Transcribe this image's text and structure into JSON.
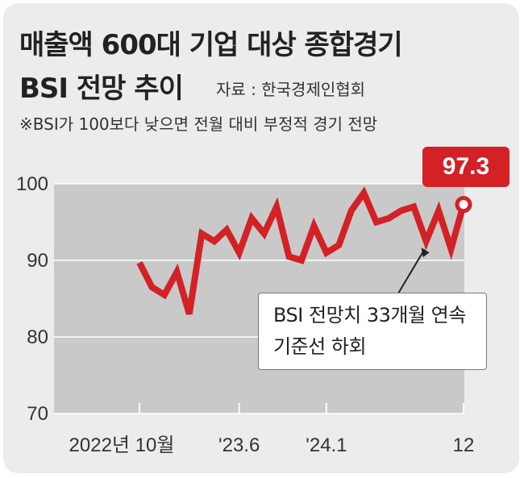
{
  "title_line1": "매출액 600대 기업 대상 종합경기",
  "title_line2": "BSI 전망 추이",
  "source": "자료 : 한국경제인협회",
  "note": "※BSI가 100보다 낮으면 전월 대비 부정적 경기 전망",
  "colors": {
    "line": "#d32126",
    "plot_bg": "#c9c9c9",
    "frame_bg": "#ececec"
  },
  "chart_data": {
    "type": "line",
    "title": "매출액 600대 기업 대상 종합경기 BSI 전망 추이",
    "ylim": [
      70,
      100
    ],
    "yticks": [
      100,
      90,
      80,
      70
    ],
    "x_tick_labels": [
      {
        "label": "2022년 10월",
        "index": 0
      },
      {
        "label": "'23.6",
        "index": 8
      },
      {
        "label": "'24.1",
        "index": 15
      },
      {
        "label": "12",
        "index": 26
      }
    ],
    "x": [
      "2022-10",
      "2022-11",
      "2022-12",
      "2023-01",
      "2023-02",
      "2023-03",
      "2023-04",
      "2023-05",
      "2023-06",
      "2023-07",
      "2023-08",
      "2023-09",
      "2023-10",
      "2023-11",
      "2023-12",
      "2024-01",
      "2024-02",
      "2024-03",
      "2024-04",
      "2024-05",
      "2024-06",
      "2024-07",
      "2024-08",
      "2024-09",
      "2024-10",
      "2024-11",
      "2024-12"
    ],
    "series": [
      {
        "values": [
          89.7,
          86.5,
          85.5,
          88.5,
          83.0,
          93.5,
          92.5,
          94.0,
          91.0,
          95.5,
          93.5,
          97.0,
          90.5,
          90.0,
          94.5,
          91.0,
          92.0,
          96.5,
          98.8,
          95.0,
          95.5,
          96.5,
          97.0,
          92.5,
          96.5,
          91.5,
          97.3
        ]
      }
    ],
    "last_value_label": "97.3",
    "annotation": {
      "line1": "BSI 전망치 33개월 연속",
      "line2": "기준선 하회"
    }
  }
}
